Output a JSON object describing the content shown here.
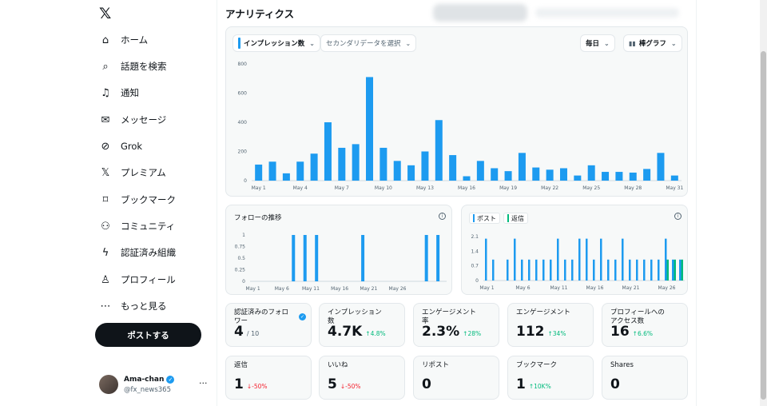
{
  "app": {
    "logo": "𝕏",
    "page_title": "アナリティクス"
  },
  "nav": [
    {
      "label": "ホーム",
      "icon": "home-icon",
      "glyph": "⌂"
    },
    {
      "label": "話題を検索",
      "icon": "search-icon",
      "glyph": "⌕"
    },
    {
      "label": "通知",
      "icon": "bell-icon",
      "glyph": "♫"
    },
    {
      "label": "メッセージ",
      "icon": "mail-icon",
      "glyph": "✉"
    },
    {
      "label": "Grok",
      "icon": "grok-icon",
      "glyph": "⊘"
    },
    {
      "label": "プレミアム",
      "icon": "x-premium-icon",
      "glyph": "𝕏"
    },
    {
      "label": "ブックマーク",
      "icon": "bookmark-icon",
      "glyph": "⌑"
    },
    {
      "label": "コミュニティ",
      "icon": "community-icon",
      "glyph": "⚇"
    },
    {
      "label": "認証済み組織",
      "icon": "lightning-icon",
      "glyph": "ϟ"
    },
    {
      "label": "プロフィール",
      "icon": "person-icon",
      "glyph": "♙"
    },
    {
      "label": "もっと見る",
      "icon": "more-circle-icon",
      "glyph": "⋯"
    }
  ],
  "post_button": "ポストする",
  "account": {
    "name": "Ama-chan",
    "handle": "@fx_news365",
    "more": "···"
  },
  "controls": {
    "metric": "インプレッション数",
    "secondary": "セカンダリデータを選択",
    "period": "毎日",
    "chart_type": "棒グラフ"
  },
  "colors": {
    "accent": "#1d9bf0",
    "reply": "#00ba7c",
    "up": "#00ba7c",
    "down": "#f4212e"
  },
  "chart_data": [
    {
      "type": "bar",
      "title": "",
      "ylim": [
        0,
        800
      ],
      "yticks": [
        "0",
        "200",
        "400",
        "600",
        "800"
      ],
      "xticklabels": [
        "May 1",
        "May 4",
        "May 7",
        "May 10",
        "May 13",
        "May 16",
        "May 19",
        "May 22",
        "May 25",
        "May 28",
        "May 31"
      ],
      "series": [
        {
          "values": [
            110,
            130,
            50,
            130,
            185,
            400,
            225,
            250,
            710,
            225,
            135,
            105,
            200,
            415,
            175,
            30,
            135,
            85,
            65,
            190,
            90,
            75,
            85,
            35,
            105,
            60,
            60,
            55,
            80,
            190,
            35
          ]
        }
      ]
    },
    {
      "type": "bar",
      "title": "フォローの推移",
      "ylim": [
        0,
        1
      ],
      "yticks": [
        "0",
        "0.25",
        "0.5",
        "0.75",
        "1"
      ],
      "xticklabels": [
        "May 1",
        "May 6",
        "May 11",
        "May 16",
        "May 21",
        "May 26"
      ],
      "series": [
        {
          "values": [
            0,
            0,
            0,
            0,
            0,
            0,
            0,
            1,
            0,
            1,
            0,
            1,
            0,
            0,
            0,
            0,
            0,
            0,
            0,
            1,
            0,
            0,
            0,
            0,
            0,
            0,
            0,
            0,
            0,
            0,
            1,
            0,
            1,
            0
          ]
        }
      ]
    },
    {
      "type": "bar",
      "title": "",
      "ylim": [
        0,
        2.1
      ],
      "yticks": [
        "0",
        "0.7",
        "1.4",
        "2.1"
      ],
      "xticklabels": [
        "May 1",
        "May 6",
        "May 11",
        "May 16",
        "May 21",
        "May 26"
      ],
      "legend": [
        "ポスト",
        "返信"
      ],
      "series": [
        {
          "name": "ポスト",
          "values": [
            2,
            1,
            0,
            1,
            2,
            1,
            1,
            1,
            1,
            1,
            2,
            1,
            1,
            2,
            2,
            1,
            2,
            1,
            1,
            2,
            1,
            1,
            1,
            1,
            1,
            2,
            1,
            1
          ]
        },
        {
          "name": "返信",
          "values": [
            0,
            0,
            0,
            0,
            0,
            0,
            0,
            0,
            0,
            0,
            0,
            0,
            0,
            0,
            0,
            0,
            0,
            0,
            0,
            0,
            0,
            0,
            0,
            0,
            0,
            1,
            1,
            1
          ]
        }
      ]
    }
  ],
  "stats": [
    {
      "label": "認証済みのフォロワー",
      "value": "4",
      "sub": "/ 10",
      "change": "",
      "dir": "",
      "verified": true
    },
    {
      "label": "インプレッション数",
      "value": "4.7K",
      "sub": "",
      "change": "↑4.8%",
      "dir": "up"
    },
    {
      "label": "エンゲージメント率",
      "value": "2.3%",
      "sub": "",
      "change": "↑28%",
      "dir": "up"
    },
    {
      "label": "エンゲージメント",
      "value": "112",
      "sub": "",
      "change": "↑34%",
      "dir": "up"
    },
    {
      "label": "プロフィールへのアクセス数",
      "value": "16",
      "sub": "",
      "change": "↑6.6%",
      "dir": "up"
    },
    {
      "label": "返信",
      "value": "1",
      "sub": "",
      "change": "↓-50%",
      "dir": "down"
    },
    {
      "label": "いいね",
      "value": "5",
      "sub": "",
      "change": "↓-50%",
      "dir": "down"
    },
    {
      "label": "リポスト",
      "value": "0",
      "sub": "",
      "change": "",
      "dir": ""
    },
    {
      "label": "ブックマーク",
      "value": "1",
      "sub": "",
      "change": "↑10K%",
      "dir": "up"
    },
    {
      "label": "Shares",
      "value": "0",
      "sub": "",
      "change": "",
      "dir": ""
    }
  ]
}
